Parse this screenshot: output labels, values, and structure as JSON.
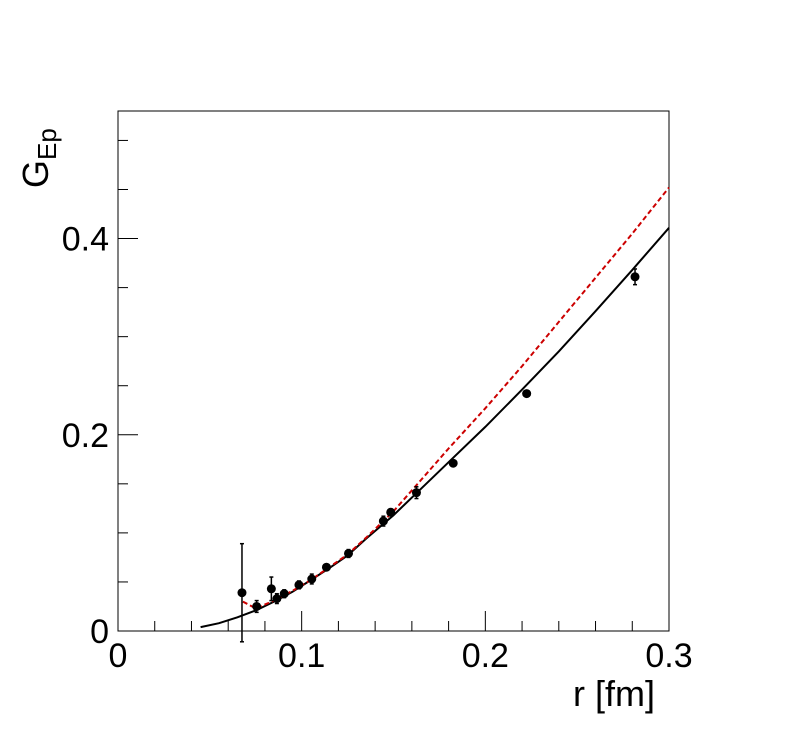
{
  "chart_data": {
    "type": "scatter",
    "title": "",
    "xlabel": "r [fm]",
    "ylabel": {
      "main": "G",
      "sub": "Ep"
    },
    "xlim": [
      0,
      0.3
    ],
    "ylim": [
      0,
      0.53
    ],
    "x_ticks": [
      {
        "value": 0,
        "label": "0"
      },
      {
        "value": 0.1,
        "label": "0.1"
      },
      {
        "value": 0.2,
        "label": "0.2"
      },
      {
        "value": 0.3,
        "label": "0.3"
      }
    ],
    "y_ticks": [
      {
        "value": 0,
        "label": "0"
      },
      {
        "value": 0.2,
        "label": "0.2"
      },
      {
        "value": 0.4,
        "label": "0.4"
      }
    ],
    "grid": false,
    "legend": "none",
    "colors": {
      "points": "#000000",
      "solid_curve": "#000000",
      "dashed_curve": "#cc0000"
    },
    "series": [
      {
        "kind": "points",
        "points": [
          {
            "x": 0.0675,
            "y": 0.039,
            "err": 0.05
          },
          {
            "x": 0.0755,
            "y": 0.025,
            "err": 0.006
          },
          {
            "x": 0.0835,
            "y": 0.043,
            "err": 0.012
          },
          {
            "x": 0.0865,
            "y": 0.033,
            "err": 0.005
          },
          {
            "x": 0.0905,
            "y": 0.038,
            "err": 0.004
          },
          {
            "x": 0.0985,
            "y": 0.047,
            "err": 0.004
          },
          {
            "x": 0.1055,
            "y": 0.053,
            "err": 0.005
          },
          {
            "x": 0.1135,
            "y": 0.065,
            "err": 0.003
          },
          {
            "x": 0.1255,
            "y": 0.079,
            "err": 0.004
          },
          {
            "x": 0.1445,
            "y": 0.112,
            "err": 0.005
          },
          {
            "x": 0.1485,
            "y": 0.121,
            "err": 0.003
          },
          {
            "x": 0.1625,
            "y": 0.141,
            "err": 0.006
          },
          {
            "x": 0.1825,
            "y": 0.171,
            "err": 0.003
          },
          {
            "x": 0.2225,
            "y": 0.242,
            "err": 0.003
          },
          {
            "x": 0.2815,
            "y": 0.361,
            "err": 0.008
          }
        ]
      },
      {
        "kind": "solid-line",
        "points": [
          [
            0.045,
            0.004
          ],
          [
            0.055,
            0.008
          ],
          [
            0.065,
            0.014
          ],
          [
            0.075,
            0.021
          ],
          [
            0.085,
            0.03
          ],
          [
            0.095,
            0.04
          ],
          [
            0.105,
            0.052
          ],
          [
            0.115,
            0.064
          ],
          [
            0.125,
            0.077
          ],
          [
            0.135,
            0.094
          ],
          [
            0.15,
            0.118
          ],
          [
            0.165,
            0.145
          ],
          [
            0.18,
            0.172
          ],
          [
            0.2,
            0.208
          ],
          [
            0.22,
            0.246
          ],
          [
            0.24,
            0.285
          ],
          [
            0.26,
            0.326
          ],
          [
            0.28,
            0.368
          ],
          [
            0.3,
            0.411
          ]
        ]
      },
      {
        "kind": "dashed-line",
        "points": [
          [
            0.068,
            0.03
          ],
          [
            0.075,
            0.023
          ],
          [
            0.085,
            0.031
          ],
          [
            0.095,
            0.041
          ],
          [
            0.105,
            0.052
          ],
          [
            0.115,
            0.065
          ],
          [
            0.125,
            0.078
          ],
          [
            0.135,
            0.095
          ],
          [
            0.15,
            0.122
          ],
          [
            0.165,
            0.154
          ],
          [
            0.18,
            0.186
          ],
          [
            0.2,
            0.227
          ],
          [
            0.22,
            0.27
          ],
          [
            0.24,
            0.315
          ],
          [
            0.26,
            0.36
          ],
          [
            0.28,
            0.405
          ],
          [
            0.3,
            0.452
          ]
        ]
      }
    ]
  }
}
